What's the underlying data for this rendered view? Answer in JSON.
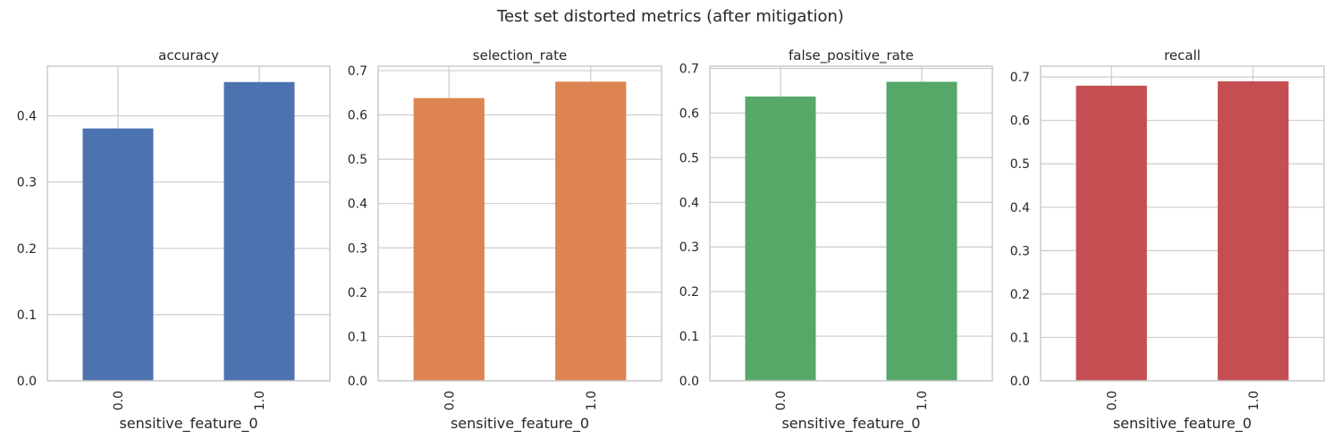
{
  "figure": {
    "suptitle": "Test set distorted metrics (after mitigation)"
  },
  "colors": {
    "accuracy": "#4c72b0",
    "selection_rate": "#dd8452",
    "false_positive_rate": "#55a868",
    "recall": "#c44e52",
    "grid": "#cccccc",
    "frame": "#cccccc",
    "text": "#262626"
  },
  "chart_data": [
    {
      "type": "bar",
      "title": "accuracy",
      "xlabel": "sensitive_feature_0",
      "ylabel": "",
      "categories": [
        "0.0",
        "1.0"
      ],
      "values": [
        0.381,
        0.451
      ],
      "ylim": [
        0,
        0.475
      ],
      "yticks": [
        "0.0",
        "0.1",
        "0.2",
        "0.3",
        "0.4"
      ],
      "grid": true,
      "color": "#4c72b0"
    },
    {
      "type": "bar",
      "title": "selection_rate",
      "xlabel": "sensitive_feature_0",
      "ylabel": "",
      "categories": [
        "0.0",
        "1.0"
      ],
      "values": [
        0.638,
        0.675
      ],
      "ylim": [
        0,
        0.71
      ],
      "yticks": [
        "0.0",
        "0.1",
        "0.2",
        "0.3",
        "0.4",
        "0.5",
        "0.6",
        "0.7"
      ],
      "grid": true,
      "color": "#dd8452"
    },
    {
      "type": "bar",
      "title": "false_positive_rate",
      "xlabel": "sensitive_feature_0",
      "ylabel": "",
      "categories": [
        "0.0",
        "1.0"
      ],
      "values": [
        0.637,
        0.67
      ],
      "ylim": [
        0,
        0.705
      ],
      "yticks": [
        "0.0",
        "0.1",
        "0.2",
        "0.3",
        "0.4",
        "0.5",
        "0.6",
        "0.7"
      ],
      "grid": true,
      "color": "#55a868"
    },
    {
      "type": "bar",
      "title": "recall",
      "xlabel": "sensitive_feature_0",
      "ylabel": "",
      "categories": [
        "0.0",
        "1.0"
      ],
      "values": [
        0.68,
        0.69
      ],
      "ylim": [
        0,
        0.725
      ],
      "yticks": [
        "0.0",
        "0.1",
        "0.2",
        "0.3",
        "0.4",
        "0.5",
        "0.6",
        "0.7"
      ],
      "grid": true,
      "color": "#c44e52"
    }
  ]
}
